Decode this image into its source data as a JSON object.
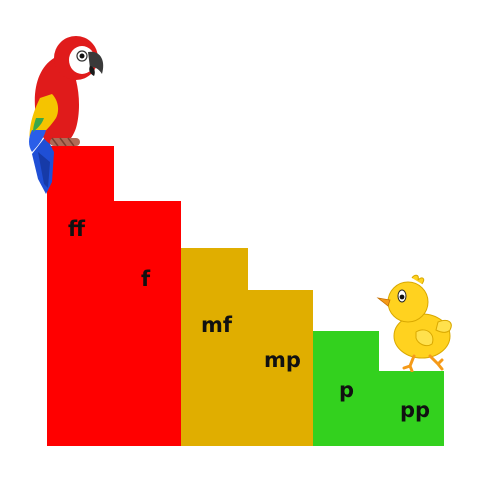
{
  "colors": {
    "loud": "#ff0000",
    "medium": "#e0ae00",
    "soft": "#33d11e",
    "background": "#ffffff",
    "text": "#111111"
  },
  "dynamics": [
    {
      "label": "ff",
      "level": 6,
      "group": "loud"
    },
    {
      "label": "f",
      "level": 5,
      "group": "loud"
    },
    {
      "label": "mf",
      "level": 4,
      "group": "medium"
    },
    {
      "label": "mp",
      "level": 3,
      "group": "medium"
    },
    {
      "label": "p",
      "level": 2,
      "group": "soft"
    },
    {
      "label": "pp",
      "level": 1,
      "group": "soft"
    }
  ],
  "mascots": {
    "loud": "parrot-icon",
    "soft": "chick-icon"
  }
}
